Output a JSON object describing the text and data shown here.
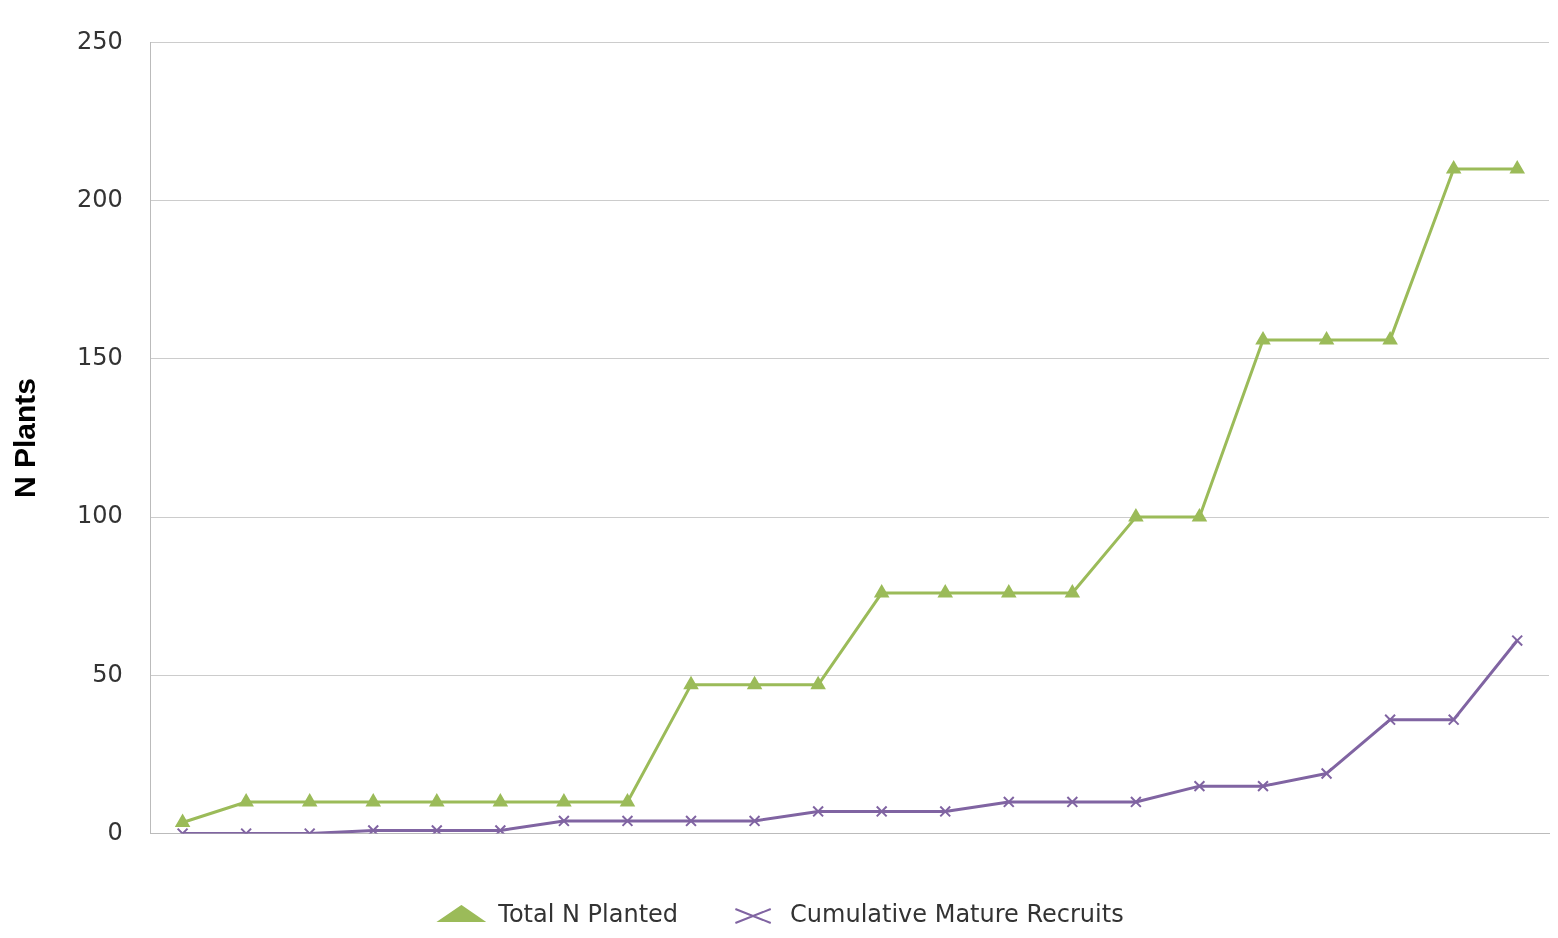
{
  "chart_data": {
    "type": "line",
    "ylabel": "N Plants",
    "categories": [
      null,
      null,
      null,
      null,
      null,
      null,
      null,
      null,
      null,
      null,
      null,
      null,
      null,
      null,
      null,
      null,
      null,
      null,
      null,
      null,
      null,
      null
    ],
    "series": [
      {
        "name": "Total N Planted",
        "color": "#9bbb59",
        "marker": "triangle",
        "values": [
          3.5,
          10,
          10,
          10,
          10,
          10,
          10,
          10,
          47,
          47,
          47,
          76,
          76,
          76,
          76,
          100,
          100,
          156,
          156,
          156,
          210,
          210
        ]
      },
      {
        "name": "Cumulative Mature Recruits",
        "color": "#8064a2",
        "marker": "cross",
        "values": [
          0,
          0,
          0,
          1,
          1,
          1,
          4,
          4,
          4,
          4,
          7,
          7,
          7,
          10,
          10,
          10,
          15,
          15,
          19,
          36,
          36,
          61
        ]
      }
    ],
    "ylim": [
      0,
      250
    ],
    "yticks": [
      0,
      50,
      100,
      150,
      200,
      250
    ],
    "grid": "y",
    "legend": "bottom",
    "line_style": "solid"
  }
}
